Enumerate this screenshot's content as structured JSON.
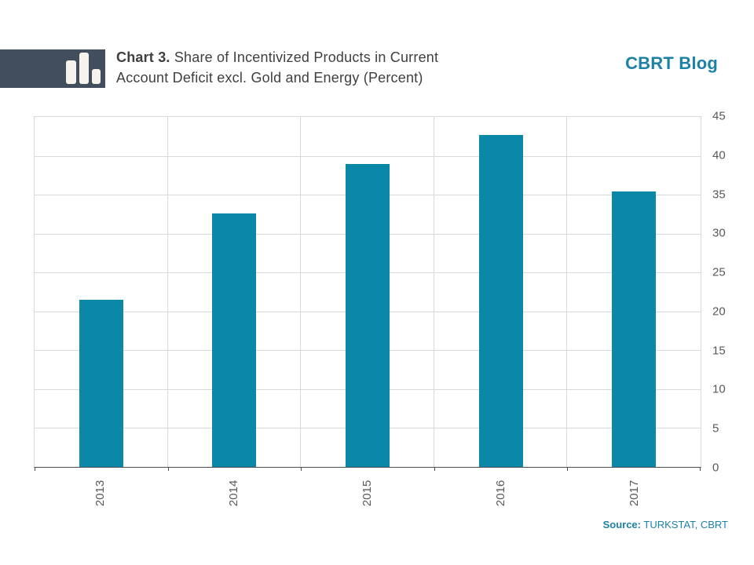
{
  "header": {
    "title_prefix": "Chart 3.",
    "title_line1_rest": " Share of Incentivized Products in Current",
    "title_line2": "Account Deficit excl. Gold and Energy (Percent)",
    "brand": "CBRT Blog"
  },
  "footer": {
    "source_label": "Source:",
    "source_value": " TURKSTAT, CBRT"
  },
  "colors": {
    "bar": "#0b87a7",
    "brand": "#1d81a6",
    "logo_bg": "#414e5d",
    "logo_bar": "#f7f3ec",
    "grid": "#d9d9d9",
    "axis": "#4d4d4d",
    "tick_text": "#595959",
    "title_text": "#3f3f3f"
  },
  "icons": {
    "logo": "bar-chart-logo"
  },
  "chart_data": {
    "type": "bar",
    "title": "Chart 3. Share of Incentivized Products in Current Account Deficit excl. Gold and Energy (Percent)",
    "categories": [
      "2013",
      "2014",
      "2015",
      "2016",
      "2017"
    ],
    "values": [
      21.5,
      32.6,
      38.9,
      42.7,
      35.4
    ],
    "xlabel": "",
    "ylabel": "",
    "ylim": [
      0,
      45
    ],
    "y_ticks": [
      0,
      5,
      10,
      15,
      20,
      25,
      30,
      35,
      40,
      45
    ],
    "y_axis_side": "right",
    "x_label_rotation": -90,
    "grid": true,
    "bar_color": "#0b87a7"
  }
}
